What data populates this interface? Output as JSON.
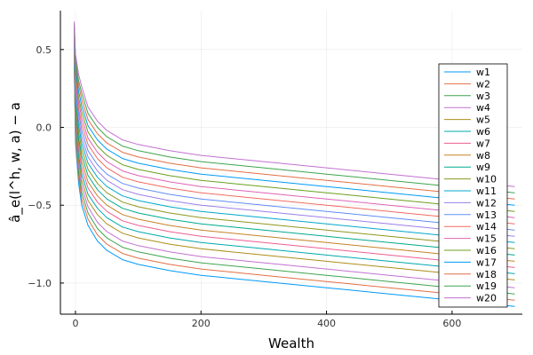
{
  "chart_data": {
    "type": "line",
    "title": "",
    "xlabel": "Wealth",
    "ylabel": "â_e(l^h, w, a) − a",
    "xlim": [
      -24,
      712
    ],
    "ylim": [
      -1.2,
      0.75
    ],
    "xticks": [
      0,
      200,
      400,
      600
    ],
    "yticks": [
      0.5,
      0.0,
      -0.5,
      -1.0
    ],
    "xtick_labels": [
      "0",
      "200",
      "400",
      "600"
    ],
    "ytick_labels": [
      "0.5",
      "0.0",
      "−0.5",
      "−1.0"
    ],
    "grid": true,
    "legend_position": "bottom-right",
    "x": [
      -2,
      0,
      5,
      10,
      20,
      35,
      50,
      75,
      100,
      150,
      200,
      300,
      400,
      500,
      600,
      700
    ],
    "series": [
      {
        "name": "w1",
        "color": "#009AF9",
        "values": [
          0.4,
          -0.1,
          -0.36,
          -0.5,
          -0.63,
          -0.73,
          -0.79,
          -0.85,
          -0.88,
          -0.92,
          -0.95,
          -0.99,
          -1.03,
          -1.07,
          -1.11,
          -1.15
        ]
      },
      {
        "name": "w2",
        "color": "#E26F46",
        "values": [
          0.42,
          -0.07,
          -0.32,
          -0.46,
          -0.59,
          -0.69,
          -0.75,
          -0.81,
          -0.84,
          -0.88,
          -0.91,
          -0.95,
          -0.99,
          -1.03,
          -1.07,
          -1.11
        ]
      },
      {
        "name": "w3",
        "color": "#3EA44E",
        "values": [
          0.44,
          -0.04,
          -0.29,
          -0.42,
          -0.55,
          -0.65,
          -0.71,
          -0.77,
          -0.8,
          -0.84,
          -0.87,
          -0.91,
          -0.95,
          -0.99,
          -1.03,
          -1.07
        ]
      },
      {
        "name": "w4",
        "color": "#C371D2",
        "values": [
          0.45,
          -0.01,
          -0.25,
          -0.38,
          -0.51,
          -0.61,
          -0.67,
          -0.73,
          -0.76,
          -0.8,
          -0.83,
          -0.87,
          -0.91,
          -0.95,
          -0.99,
          -1.03
        ]
      },
      {
        "name": "w5",
        "color": "#AC8E18",
        "values": [
          0.47,
          0.02,
          -0.21,
          -0.34,
          -0.47,
          -0.56,
          -0.62,
          -0.68,
          -0.71,
          -0.75,
          -0.78,
          -0.82,
          -0.86,
          -0.9,
          -0.94,
          -0.98
        ]
      },
      {
        "name": "w6",
        "color": "#00A9AD",
        "values": [
          0.48,
          0.05,
          -0.18,
          -0.3,
          -0.43,
          -0.52,
          -0.58,
          -0.64,
          -0.67,
          -0.71,
          -0.74,
          -0.78,
          -0.82,
          -0.86,
          -0.9,
          -0.94
        ]
      },
      {
        "name": "w7",
        "color": "#ED5E93",
        "values": [
          0.5,
          0.08,
          -0.14,
          -0.26,
          -0.39,
          -0.48,
          -0.54,
          -0.6,
          -0.63,
          -0.67,
          -0.7,
          -0.74,
          -0.78,
          -0.82,
          -0.86,
          -0.9
        ]
      },
      {
        "name": "w8",
        "color": "#C68225",
        "values": [
          0.51,
          0.11,
          -0.1,
          -0.22,
          -0.35,
          -0.44,
          -0.5,
          -0.56,
          -0.59,
          -0.63,
          -0.66,
          -0.7,
          -0.74,
          -0.78,
          -0.82,
          -0.86
        ]
      },
      {
        "name": "w9",
        "color": "#00A98D",
        "values": [
          0.53,
          0.14,
          -0.07,
          -0.18,
          -0.31,
          -0.4,
          -0.46,
          -0.52,
          -0.55,
          -0.59,
          -0.62,
          -0.66,
          -0.7,
          -0.74,
          -0.78,
          -0.82
        ]
      },
      {
        "name": "w10",
        "color": "#8E971D",
        "values": [
          0.54,
          0.17,
          -0.03,
          -0.14,
          -0.27,
          -0.36,
          -0.42,
          -0.48,
          -0.51,
          -0.55,
          -0.58,
          -0.62,
          -0.66,
          -0.7,
          -0.74,
          -0.78
        ]
      },
      {
        "name": "w11",
        "color": "#00A8CB",
        "values": [
          0.56,
          0.2,
          0.01,
          -0.1,
          -0.23,
          -0.32,
          -0.38,
          -0.44,
          -0.47,
          -0.51,
          -0.54,
          -0.58,
          -0.62,
          -0.66,
          -0.7,
          -0.74
        ]
      },
      {
        "name": "w12",
        "color": "#9B7FE9",
        "values": [
          0.57,
          0.23,
          0.05,
          -0.06,
          -0.19,
          -0.28,
          -0.34,
          -0.4,
          -0.43,
          -0.47,
          -0.5,
          -0.54,
          -0.58,
          -0.62,
          -0.66,
          -0.7
        ]
      },
      {
        "name": "w13",
        "color": "#618DF6",
        "values": [
          0.59,
          0.26,
          0.09,
          -0.02,
          -0.15,
          -0.24,
          -0.3,
          -0.36,
          -0.39,
          -0.43,
          -0.46,
          -0.5,
          -0.54,
          -0.58,
          -0.62,
          -0.66
        ]
      },
      {
        "name": "w14",
        "color": "#F16C60",
        "values": [
          0.6,
          0.29,
          0.12,
          0.02,
          -0.11,
          -0.2,
          -0.26,
          -0.32,
          -0.35,
          -0.39,
          -0.42,
          -0.46,
          -0.5,
          -0.54,
          -0.58,
          -0.62
        ]
      },
      {
        "name": "w15",
        "color": "#DD64B5",
        "values": [
          0.62,
          0.32,
          0.16,
          0.06,
          -0.07,
          -0.16,
          -0.22,
          -0.28,
          -0.31,
          -0.35,
          -0.38,
          -0.42,
          -0.46,
          -0.5,
          -0.54,
          -0.58
        ]
      },
      {
        "name": "w16",
        "color": "#6B9F20",
        "values": [
          0.63,
          0.35,
          0.19,
          0.1,
          -0.03,
          -0.12,
          -0.18,
          -0.24,
          -0.27,
          -0.31,
          -0.34,
          -0.38,
          -0.42,
          -0.46,
          -0.5,
          -0.54
        ]
      },
      {
        "name": "w17",
        "color": "#009AF9",
        "values": [
          0.65,
          0.38,
          0.23,
          0.14,
          0.01,
          -0.08,
          -0.14,
          -0.2,
          -0.23,
          -0.27,
          -0.3,
          -0.34,
          -0.38,
          -0.42,
          -0.46,
          -0.5
        ]
      },
      {
        "name": "w18",
        "color": "#E26F46",
        "values": [
          0.66,
          0.41,
          0.27,
          0.18,
          0.05,
          -0.04,
          -0.1,
          -0.16,
          -0.19,
          -0.23,
          -0.26,
          -0.3,
          -0.34,
          -0.38,
          -0.42,
          -0.46
        ]
      },
      {
        "name": "w19",
        "color": "#3EA44E",
        "values": [
          0.67,
          0.44,
          0.3,
          0.22,
          0.09,
          0.0,
          -0.06,
          -0.12,
          -0.15,
          -0.19,
          -0.22,
          -0.26,
          -0.3,
          -0.34,
          -0.38,
          -0.42
        ]
      },
      {
        "name": "w20",
        "color": "#C371D2",
        "values": [
          0.68,
          0.47,
          0.34,
          0.26,
          0.13,
          0.04,
          -0.02,
          -0.08,
          -0.11,
          -0.15,
          -0.18,
          -0.22,
          -0.26,
          -0.3,
          -0.34,
          -0.38
        ]
      }
    ]
  }
}
